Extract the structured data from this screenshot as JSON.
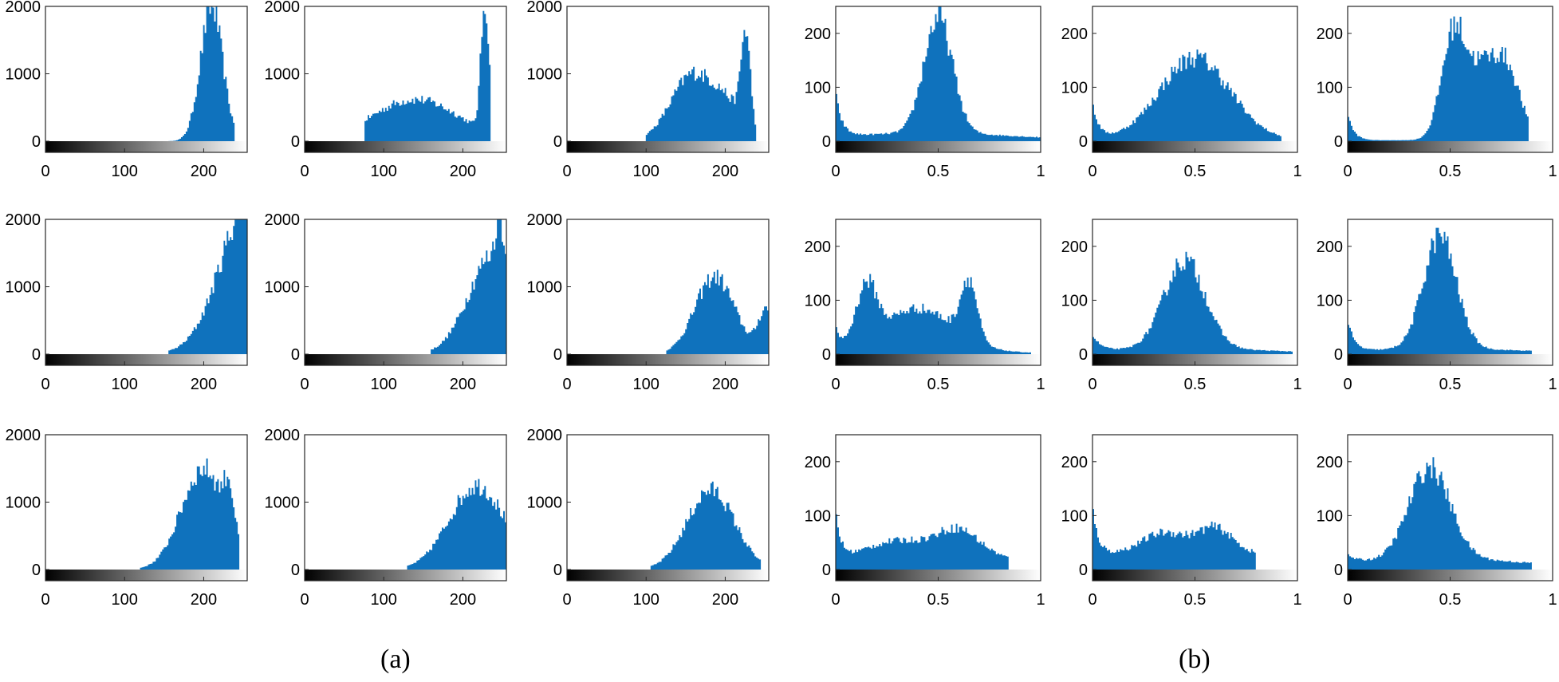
{
  "figure": {
    "label_a": "(a)",
    "label_b": "(b)",
    "bar_color": "#0F72BD"
  },
  "chart_data": [
    {
      "type": "bar",
      "panel": "a",
      "row": 1,
      "col": 1,
      "xlim": [
        0,
        255
      ],
      "ylim": [
        0,
        2000
      ],
      "xticks": [
        0,
        100,
        200
      ],
      "yticks": [
        0,
        1000,
        2000
      ],
      "xtick_labels": [
        "0",
        "100",
        "200"
      ],
      "ytick_labels": [
        "0",
        "1000",
        "2000"
      ],
      "peaks": [
        {
          "x": 210,
          "y": 2000,
          "w": 14
        }
      ],
      "support": [
        155,
        240
      ],
      "colorbar": true
    },
    {
      "type": "bar",
      "panel": "a",
      "row": 1,
      "col": 2,
      "xlim": [
        0,
        255
      ],
      "ylim": [
        0,
        2000
      ],
      "xticks": [
        0,
        100,
        200
      ],
      "yticks": [
        0,
        1000,
        2000
      ],
      "xtick_labels": [
        "0",
        "100",
        "200"
      ],
      "ytick_labels": [
        "0",
        "1000",
        "2000"
      ],
      "peaks": [
        {
          "x": 140,
          "y": 620,
          "w": 55
        },
        {
          "x": 228,
          "y": 1920,
          "w": 5
        }
      ],
      "support": [
        75,
        235
      ],
      "colorbar": true
    },
    {
      "type": "bar",
      "panel": "a",
      "row": 1,
      "col": 3,
      "xlim": [
        0,
        255
      ],
      "ylim": [
        0,
        2000
      ],
      "xticks": [
        0,
        100,
        200
      ],
      "yticks": [
        0,
        1000,
        2000
      ],
      "xtick_labels": [
        "0",
        "100",
        "200"
      ],
      "ytick_labels": [
        "0",
        "1000",
        "2000"
      ],
      "peaks": [
        {
          "x": 160,
          "y": 1000,
          "w": 28
        },
        {
          "x": 226,
          "y": 1400,
          "w": 6
        },
        {
          "x": 205,
          "y": 380,
          "w": 18
        }
      ],
      "support": [
        100,
        240
      ],
      "colorbar": true
    },
    {
      "type": "bar",
      "panel": "a",
      "row": 2,
      "col": 1,
      "xlim": [
        0,
        255
      ],
      "ylim": [
        0,
        2000
      ],
      "xticks": [
        0,
        100,
        200
      ],
      "yticks": [
        0,
        1000,
        2000
      ],
      "xtick_labels": [
        "0",
        "100",
        "200"
      ],
      "ytick_labels": [
        "0",
        "1000",
        "2000"
      ],
      "peaks": [
        {
          "x": 262,
          "y": 2400,
          "w": 38
        }
      ],
      "support": [
        155,
        255
      ],
      "colorbar": true
    },
    {
      "type": "bar",
      "panel": "a",
      "row": 2,
      "col": 2,
      "xlim": [
        0,
        255
      ],
      "ylim": [
        0,
        2000
      ],
      "xticks": [
        0,
        100,
        200
      ],
      "yticks": [
        0,
        1000,
        2000
      ],
      "xtick_labels": [
        "0",
        "100",
        "200"
      ],
      "ytick_labels": [
        "0",
        "1000",
        "2000"
      ],
      "peaks": [
        {
          "x": 240,
          "y": 1500,
          "w": 32
        },
        {
          "x": 246,
          "y": 700,
          "w": 4
        }
      ],
      "support": [
        160,
        255
      ],
      "colorbar": true
    },
    {
      "type": "bar",
      "panel": "a",
      "row": 2,
      "col": 3,
      "xlim": [
        0,
        255
      ],
      "ylim": [
        0,
        2000
      ],
      "xticks": [
        0,
        100,
        200
      ],
      "yticks": [
        0,
        1000,
        2000
      ],
      "xtick_labels": [
        "0",
        "100",
        "200"
      ],
      "ytick_labels": [
        "0",
        "1000",
        "2000"
      ],
      "peaks": [
        {
          "x": 187,
          "y": 1150,
          "w": 25
        },
        {
          "x": 252,
          "y": 650,
          "w": 10
        }
      ],
      "support": [
        125,
        255
      ],
      "colorbar": true
    },
    {
      "type": "bar",
      "panel": "a",
      "row": 3,
      "col": 1,
      "xlim": [
        0,
        255
      ],
      "ylim": [
        0,
        2000
      ],
      "xticks": [
        0,
        100,
        200
      ],
      "yticks": [
        0,
        1000,
        2000
      ],
      "xtick_labels": [
        "0",
        "100",
        "200"
      ],
      "ytick_labels": [
        "0",
        "1000",
        "2000"
      ],
      "peaks": [
        {
          "x": 200,
          "y": 1500,
          "w": 28
        },
        {
          "x": 232,
          "y": 600,
          "w": 6
        }
      ],
      "support": [
        120,
        245
      ],
      "colorbar": true
    },
    {
      "type": "bar",
      "panel": "a",
      "row": 3,
      "col": 2,
      "xlim": [
        0,
        255
      ],
      "ylim": [
        0,
        2000
      ],
      "xticks": [
        0,
        100,
        200
      ],
      "yticks": [
        0,
        1000,
        2000
      ],
      "xtick_labels": [
        "0",
        "100",
        "200"
      ],
      "ytick_labels": [
        "0",
        "1000",
        "2000"
      ],
      "peaks": [
        {
          "x": 218,
          "y": 1250,
          "w": 35
        }
      ],
      "support": [
        130,
        255
      ],
      "colorbar": true
    },
    {
      "type": "bar",
      "panel": "a",
      "row": 3,
      "col": 3,
      "xlim": [
        0,
        255
      ],
      "ylim": [
        0,
        2000
      ],
      "xticks": [
        0,
        100,
        200
      ],
      "yticks": [
        0,
        1000,
        2000
      ],
      "xtick_labels": [
        "0",
        "100",
        "200"
      ],
      "ytick_labels": [
        "0",
        "1000",
        "2000"
      ],
      "peaks": [
        {
          "x": 182,
          "y": 1180,
          "w": 30
        }
      ],
      "support": [
        105,
        245
      ],
      "colorbar": true
    },
    {
      "type": "bar",
      "panel": "b",
      "row": 1,
      "col": 1,
      "xlim": [
        0,
        1
      ],
      "ylim": [
        0,
        250
      ],
      "xticks": [
        0,
        0.5,
        1
      ],
      "yticks": [
        0,
        100,
        200
      ],
      "xtick_labels": [
        "0",
        "0.5",
        "1"
      ],
      "ytick_labels": [
        "0",
        "100",
        "200"
      ],
      "peaks": [
        {
          "x": 0.5,
          "y": 215,
          "w": 0.07
        }
      ],
      "edge": {
        "y": 80,
        "decay": 0.03
      },
      "base": 15,
      "support": [
        0,
        1
      ],
      "colorbar": true
    },
    {
      "type": "bar",
      "panel": "b",
      "row": 1,
      "col": 2,
      "xlim": [
        0,
        1
      ],
      "ylim": [
        0,
        250
      ],
      "xticks": [
        0,
        0.5,
        1
      ],
      "yticks": [
        0,
        100,
        200
      ],
      "xtick_labels": [
        "0",
        "0.5",
        "1"
      ],
      "ytick_labels": [
        "0",
        "100",
        "200"
      ],
      "peaks": [
        {
          "x": 0.5,
          "y": 150,
          "w": 0.17
        }
      ],
      "edge": {
        "y": 70,
        "decay": 0.03
      },
      "base": 5,
      "support": [
        0,
        0.92
      ],
      "colorbar": true
    },
    {
      "type": "bar",
      "panel": "b",
      "row": 1,
      "col": 3,
      "xlim": [
        0,
        1
      ],
      "ylim": [
        0,
        250
      ],
      "xticks": [
        0,
        0.5,
        1
      ],
      "yticks": [
        0,
        100,
        200
      ],
      "xtick_labels": [
        "0",
        "0.5",
        "1"
      ],
      "ytick_labels": [
        "0",
        "100",
        "200"
      ],
      "peaks": [
        {
          "x": 0.52,
          "y": 205,
          "w": 0.06
        },
        {
          "x": 0.77,
          "y": 140,
          "w": 0.07
        },
        {
          "x": 0.65,
          "y": 100,
          "w": 0.06
        }
      ],
      "edge": {
        "y": 50,
        "decay": 0.03
      },
      "base": 2,
      "support": [
        0,
        0.88
      ],
      "colorbar": true
    },
    {
      "type": "bar",
      "panel": "b",
      "row": 2,
      "col": 1,
      "xlim": [
        0,
        1
      ],
      "ylim": [
        0,
        250
      ],
      "xticks": [
        0,
        0.5,
        1
      ],
      "yticks": [
        0,
        100,
        200
      ],
      "xtick_labels": [
        "0",
        "0.5",
        "1"
      ],
      "ytick_labels": [
        "0",
        "100",
        "200"
      ],
      "peaks": [
        {
          "x": 0.15,
          "y": 105,
          "w": 0.05
        },
        {
          "x": 0.4,
          "y": 80,
          "w": 0.17
        },
        {
          "x": 0.65,
          "y": 110,
          "w": 0.04
        }
      ],
      "edge": {
        "y": 40,
        "decay": 0.03
      },
      "base": 5,
      "support": [
        0,
        0.95
      ],
      "colorbar": true
    },
    {
      "type": "bar",
      "panel": "b",
      "row": 2,
      "col": 2,
      "xlim": [
        0,
        1
      ],
      "ylim": [
        0,
        250
      ],
      "xticks": [
        0,
        0.5,
        1
      ],
      "yticks": [
        0,
        100,
        200
      ],
      "xtick_labels": [
        "0",
        "0.5",
        "1"
      ],
      "ytick_labels": [
        "0",
        "100",
        "200"
      ],
      "peaks": [
        {
          "x": 0.45,
          "y": 165,
          "w": 0.1
        }
      ],
      "edge": {
        "y": 30,
        "decay": 0.04
      },
      "base": 10,
      "support": [
        0,
        0.98
      ],
      "colorbar": true
    },
    {
      "type": "bar",
      "panel": "b",
      "row": 2,
      "col": 3,
      "xlim": [
        0,
        1
      ],
      "ylim": [
        0,
        250
      ],
      "xticks": [
        0,
        0.5,
        1
      ],
      "yticks": [
        0,
        100,
        200
      ],
      "xtick_labels": [
        "0",
        "0.5",
        "1"
      ],
      "ytick_labels": [
        "0",
        "100",
        "200"
      ],
      "peaks": [
        {
          "x": 0.45,
          "y": 210,
          "w": 0.08
        }
      ],
      "edge": {
        "y": 60,
        "decay": 0.03
      },
      "base": 10,
      "support": [
        0,
        0.9
      ],
      "colorbar": true
    },
    {
      "type": "bar",
      "panel": "b",
      "row": 3,
      "col": 1,
      "xlim": [
        0,
        1
      ],
      "ylim": [
        0,
        250
      ],
      "xticks": [
        0,
        0.5,
        1
      ],
      "yticks": [
        0,
        100,
        200
      ],
      "xtick_labels": [
        "0",
        "0.5",
        "1"
      ],
      "ytick_labels": [
        "0",
        "100",
        "200"
      ],
      "peaks": [
        {
          "x": 0.6,
          "y": 45,
          "w": 0.1
        },
        {
          "x": 0.3,
          "y": 25,
          "w": 0.15
        }
      ],
      "edge": {
        "y": 90,
        "decay": 0.025
      },
      "base": 30,
      "support": [
        0,
        0.84
      ],
      "colorbar": true
    },
    {
      "type": "bar",
      "panel": "b",
      "row": 3,
      "col": 2,
      "xlim": [
        0,
        1
      ],
      "ylim": [
        0,
        250
      ],
      "xticks": [
        0,
        0.5,
        1
      ],
      "yticks": [
        0,
        100,
        200
      ],
      "xtick_labels": [
        "0",
        "0.5",
        "1"
      ],
      "ytick_labels": [
        "0",
        "100",
        "200"
      ],
      "peaks": [
        {
          "x": 0.6,
          "y": 40,
          "w": 0.08
        },
        {
          "x": 0.35,
          "y": 30,
          "w": 0.1
        }
      ],
      "edge": {
        "y": 90,
        "decay": 0.03
      },
      "base": 40,
      "support": [
        0,
        0.8
      ],
      "colorbar": true
    },
    {
      "type": "bar",
      "panel": "b",
      "row": 3,
      "col": 3,
      "xlim": [
        0,
        1
      ],
      "ylim": [
        0,
        250
      ],
      "xticks": [
        0,
        0.5,
        1
      ],
      "yticks": [
        0,
        100,
        200
      ],
      "xtick_labels": [
        "0",
        "0.5",
        "1"
      ],
      "ytick_labels": [
        "0",
        "100",
        "200"
      ],
      "peaks": [
        {
          "x": 0.4,
          "y": 170,
          "w": 0.1
        }
      ],
      "edge": {
        "y": 15,
        "decay": 0.05
      },
      "base": 20,
      "support": [
        0,
        0.9
      ],
      "colorbar": true
    }
  ]
}
